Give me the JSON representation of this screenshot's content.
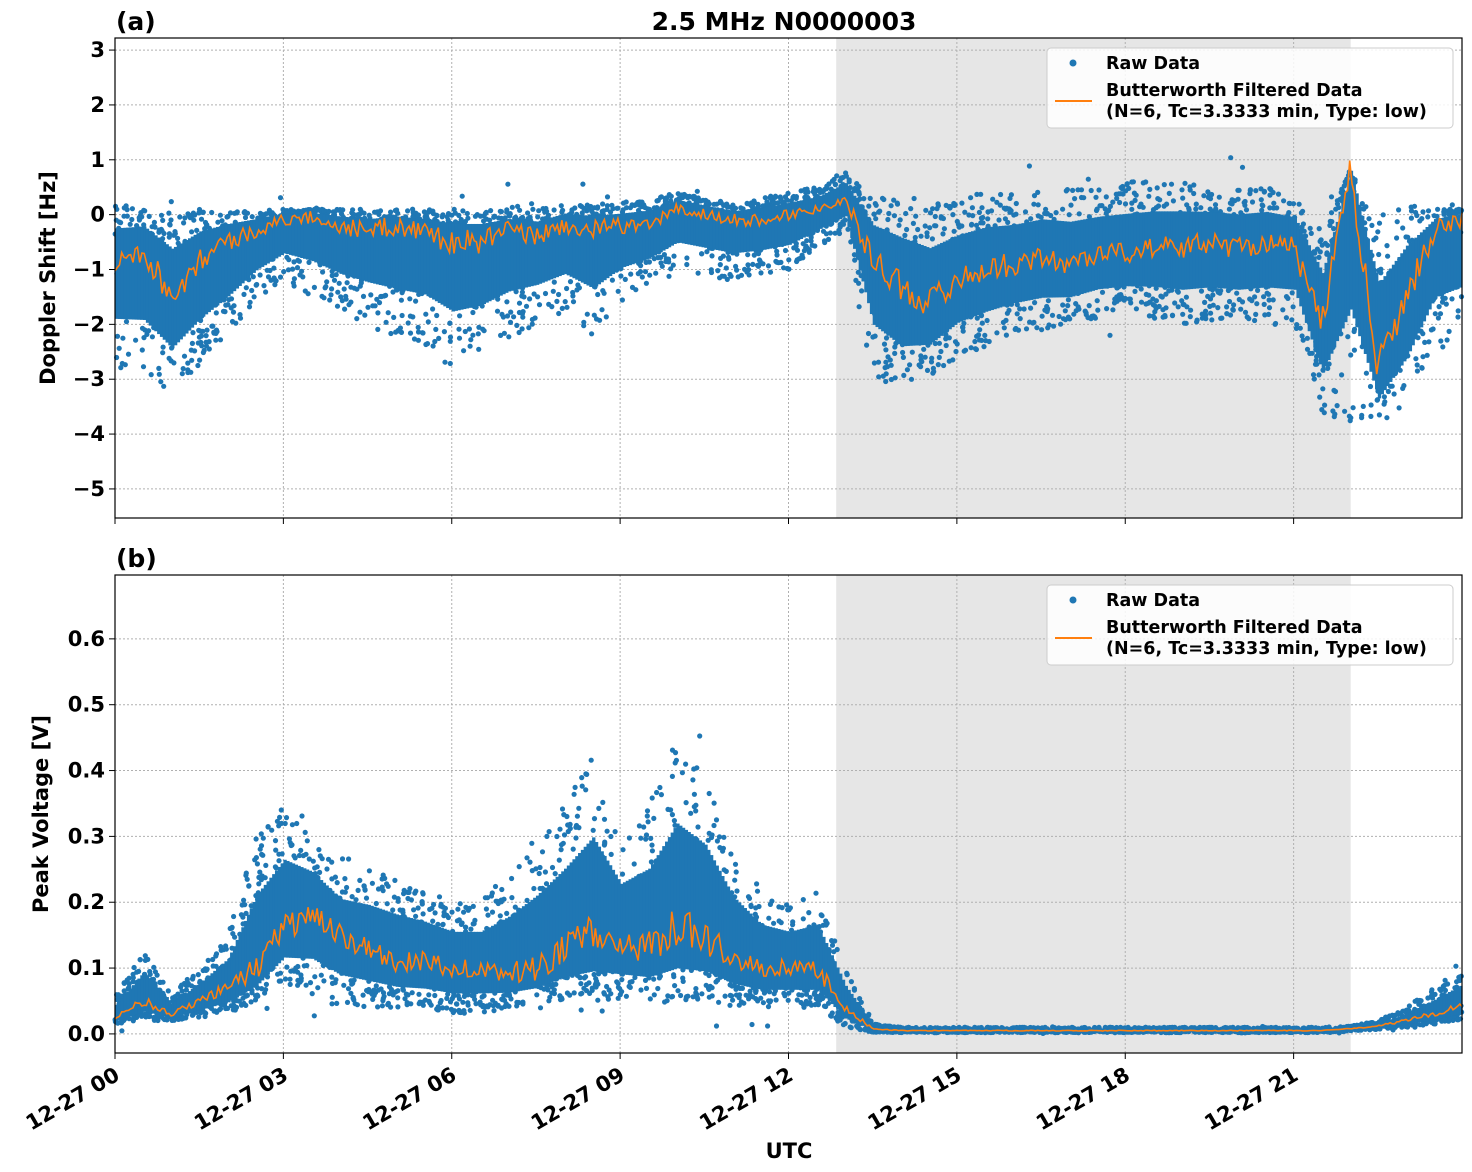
{
  "title": "2.5 MHz N0000003",
  "xlabel": "UTC",
  "x_tick_labels": [
    "12-27 00",
    "12-27 03",
    "12-27 06",
    "12-27 09",
    "12-27 12",
    "12-27 15",
    "12-27 18",
    "12-27 21"
  ],
  "colors": {
    "raw": "#1f77b4",
    "filtered": "#ff7f0e",
    "shade": "#e6e6e6"
  },
  "chart_data": [
    {
      "type": "scatter",
      "panel_label": "(a)",
      "ylabel": "Doppler Shift [Hz]",
      "xlim_hours": [
        0,
        24
      ],
      "ylim": [
        -5.53,
        3.22
      ],
      "yticks": [
        -5,
        -4,
        -3,
        -2,
        -1,
        0,
        1,
        2,
        3
      ],
      "ytick_labels": [
        "−5",
        "−4",
        "−3",
        "−2",
        "−1",
        "0",
        "1",
        "2",
        "3"
      ],
      "grid": true,
      "legend": {
        "placement": "top-right",
        "entries": [
          "Raw Data",
          "Butterworth Filtered Data",
          "(N=6, Tc=3.3333 min, Type: low)"
        ]
      },
      "shaded_interval": [
        "12-27 12:51",
        "12-27 22:01"
      ],
      "hours_step": 0.5,
      "filtered": [
        -0.8,
        -0.6,
        -1.5,
        -0.8,
        -0.5,
        -0.3,
        -0.1,
        -0.05,
        -0.2,
        -0.3,
        -0.2,
        -0.3,
        -0.5,
        -0.5,
        -0.3,
        -0.4,
        -0.2,
        -0.3,
        -0.2,
        -0.2,
        0.1,
        0.0,
        -0.1,
        -0.1,
        0.0,
        0.1,
        0.3,
        -0.8,
        -1.3,
        -1.6,
        -1.2,
        -1.0,
        -0.9,
        -0.8,
        -0.9,
        -0.7,
        -0.7,
        -0.6,
        -0.6,
        -0.5,
        -0.6,
        -0.5,
        -0.6,
        -2.0,
        0.8,
        -2.8,
        -1.5,
        -0.3,
        -0.1
      ],
      "raw_low": [
        -2.8,
        -3.0,
        -3.2,
        -2.8,
        -2.3,
        -1.6,
        -1.2,
        -1.5,
        -1.8,
        -2.0,
        -2.3,
        -2.4,
        -2.8,
        -2.6,
        -2.3,
        -2.0,
        -1.8,
        -2.2,
        -1.6,
        -1.3,
        -1.0,
        -1.1,
        -1.2,
        -1.1,
        -1.0,
        -0.6,
        -0.3,
        -3.0,
        -3.3,
        -3.0,
        -2.6,
        -2.4,
        -2.2,
        -2.1,
        -2.0,
        -1.9,
        -1.8,
        -1.9,
        -2.0,
        -2.0,
        -2.0,
        -2.0,
        -2.0,
        -3.6,
        -3.8,
        -3.8,
        -3.5,
        -2.5,
        -2.3
      ],
      "raw_high": [
        0.2,
        0.1,
        0.1,
        0.1,
        0.1,
        0.1,
        0.1,
        0.1,
        0.1,
        0.1,
        0.1,
        0.1,
        0.1,
        0.1,
        0.1,
        0.1,
        0.2,
        0.2,
        0.2,
        0.3,
        0.4,
        0.3,
        0.2,
        0.3,
        0.4,
        0.5,
        0.8,
        0.3,
        0.3,
        0.2,
        0.3,
        0.4,
        0.4,
        0.5,
        0.5,
        0.5,
        0.6,
        0.6,
        0.6,
        0.5,
        0.5,
        0.5,
        0.4,
        -0.3,
        0.8,
        0.0,
        0.2,
        0.1,
        0.1
      ]
    },
    {
      "type": "scatter",
      "panel_label": "(b)",
      "ylabel": "Peak Voltage [V]",
      "xlim_hours": [
        0,
        24
      ],
      "ylim": [
        -0.029,
        0.697
      ],
      "yticks": [
        0.0,
        0.1,
        0.2,
        0.3,
        0.4,
        0.5,
        0.6
      ],
      "ytick_labels": [
        "0.0",
        "0.1",
        "0.2",
        "0.3",
        "0.4",
        "0.5",
        "0.6"
      ],
      "grid": true,
      "legend": {
        "placement": "top-right",
        "entries": [
          "Raw Data",
          "Butterworth Filtered Data",
          "(N=6, Tc=3.3333 min, Type: low)"
        ]
      },
      "shaded_interval": [
        "12-27 12:51",
        "12-27 22:01"
      ],
      "hours_step": 0.5,
      "filtered": [
        0.025,
        0.05,
        0.03,
        0.05,
        0.07,
        0.1,
        0.16,
        0.18,
        0.15,
        0.13,
        0.11,
        0.11,
        0.1,
        0.1,
        0.09,
        0.1,
        0.13,
        0.15,
        0.14,
        0.13,
        0.16,
        0.15,
        0.12,
        0.1,
        0.1,
        0.1,
        0.04,
        0.008,
        0.005,
        0.005,
        0.005,
        0.005,
        0.005,
        0.005,
        0.005,
        0.005,
        0.005,
        0.005,
        0.005,
        0.005,
        0.005,
        0.005,
        0.005,
        0.005,
        0.008,
        0.012,
        0.02,
        0.03,
        0.045
      ],
      "raw_low": [
        0.015,
        0.02,
        0.02,
        0.025,
        0.03,
        0.05,
        0.08,
        0.06,
        0.04,
        0.04,
        0.04,
        0.035,
        0.03,
        0.03,
        0.04,
        0.045,
        0.05,
        0.05,
        0.05,
        0.05,
        0.05,
        0.05,
        0.04,
        0.04,
        0.04,
        0.04,
        0.01,
        0.002,
        0.002,
        0.002,
        0.002,
        0.002,
        0.002,
        0.002,
        0.002,
        0.002,
        0.002,
        0.002,
        0.002,
        0.002,
        0.002,
        0.002,
        0.002,
        0.002,
        0.004,
        0.007,
        0.01,
        0.015,
        0.02
      ],
      "raw_high": [
        0.06,
        0.13,
        0.06,
        0.1,
        0.15,
        0.3,
        0.35,
        0.3,
        0.25,
        0.25,
        0.24,
        0.22,
        0.2,
        0.2,
        0.25,
        0.3,
        0.35,
        0.42,
        0.3,
        0.35,
        0.45,
        0.4,
        0.28,
        0.22,
        0.2,
        0.22,
        0.1,
        0.015,
        0.01,
        0.01,
        0.01,
        0.01,
        0.01,
        0.01,
        0.01,
        0.01,
        0.01,
        0.01,
        0.01,
        0.01,
        0.01,
        0.01,
        0.01,
        0.01,
        0.012,
        0.02,
        0.04,
        0.07,
        0.1
      ]
    }
  ]
}
